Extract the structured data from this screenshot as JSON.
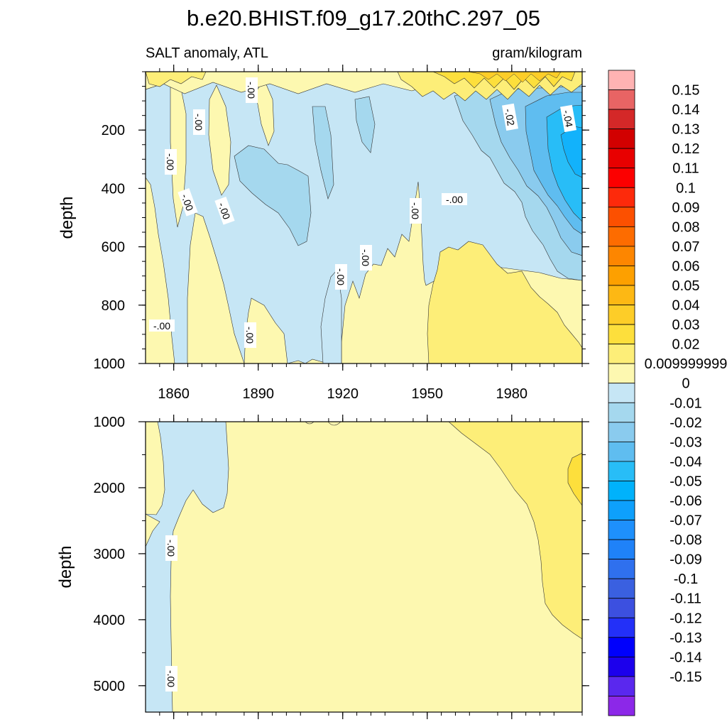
{
  "chart_data": {
    "type": "heatmap",
    "title": "b.e20.BHIST.f09_g17.20thC.297_05",
    "subtitle_left": "SALT anomaly, ATL",
    "subtitle_right": "gram/kilogram",
    "xlim": [
      1850,
      2005
    ],
    "x_ticks": [
      "1860",
      "1890",
      "1920",
      "1950",
      "1980"
    ],
    "panels": [
      {
        "name": "upper",
        "ylabel": "depth",
        "ylim": [
          0,
          1000
        ],
        "y_ticks": [
          "200",
          "400",
          "600",
          "800",
          "1000"
        ],
        "contour_labels": [
          "-.00",
          "-.00",
          "-.00",
          "-.00",
          "-.00",
          "-.00",
          "-.00",
          "-.00",
          "-.00",
          "-.00",
          "-.00",
          "-.02",
          "-.04"
        ]
      },
      {
        "name": "lower",
        "ylabel": "depth",
        "ylim": [
          1000,
          5400
        ],
        "y_ticks": [
          "1000",
          "2000",
          "3000",
          "4000",
          "5000"
        ],
        "contour_labels": [
          "-.00",
          "-.00"
        ]
      }
    ],
    "colorbar": {
      "labels": [
        "0.15",
        "0.14",
        "0.13",
        "0.12",
        "0.11",
        "0.1",
        "0.09",
        "0.08",
        "0.07",
        "0.06",
        "0.05",
        "0.04",
        "0.03",
        "0.02",
        "0.009999999",
        "0",
        "-0.01",
        "-0.02",
        "-0.03",
        "-0.04",
        "-0.05",
        "-0.06",
        "-0.07",
        "-0.08",
        "-0.09",
        "-0.1",
        "-0.11",
        "-0.12",
        "-0.13",
        "-0.14",
        "-0.15"
      ],
      "colors": [
        "#ffb3b3",
        "#e86464",
        "#d42828",
        "#d20000",
        "#e80000",
        "#fc0000",
        "#fd2a0b",
        "#fc5000",
        "#fd6c00",
        "#fd8600",
        "#fda000",
        "#fdb814",
        "#fdcd28",
        "#fddf3c",
        "#fdee78",
        "#fdf8b0",
        "#c6e6f5",
        "#a5d8ee",
        "#8acbee",
        "#5fbdf0",
        "#28bdf7",
        "#00b2fb",
        "#0ea0fc",
        "#1e90fc",
        "#1f82f8",
        "#2f70ee",
        "#3a60e0",
        "#3c50e0",
        "#2330f8",
        "#0000fc",
        "#1c00ec",
        "#5a28ee",
        "#8c28e8"
      ]
    }
  }
}
